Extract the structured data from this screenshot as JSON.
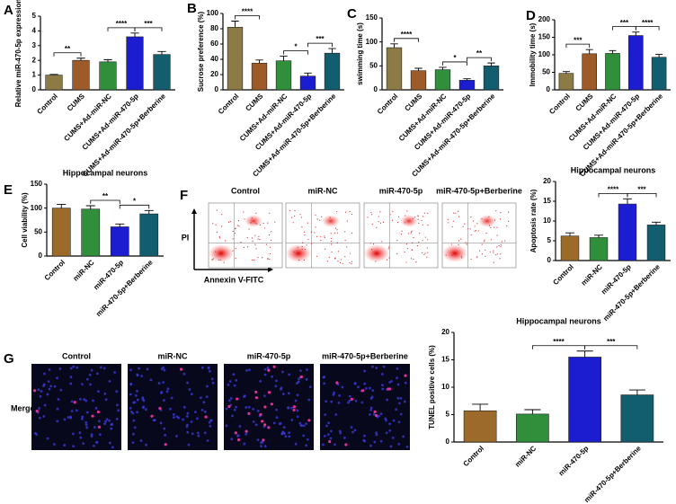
{
  "chart_data": [
    {
      "type": "bar",
      "panel": "A",
      "y_label": "Relative miR-470-5p expression",
      "categories": [
        "Control",
        "CUMS",
        "CUMS+Ad-miR-NC",
        "CUMS+Ad-miR-470-5p",
        "CUMS+Ad-miR-470-5p+Berberine"
      ],
      "values": [
        1.0,
        2.0,
        1.9,
        3.6,
        2.4
      ],
      "errors": [
        0.05,
        0.15,
        0.15,
        0.25,
        0.2
      ],
      "colors": [
        "#8c7b45",
        "#9c5b28",
        "#2f8f3a",
        "#1c1cd0",
        "#125d6e"
      ],
      "ylim": [
        0,
        5
      ],
      "yticks": [
        0,
        1,
        2,
        3,
        4,
        5
      ],
      "annotations": [
        {
          "text": "**",
          "between": [
            "Control",
            "CUMS"
          ]
        },
        {
          "text": "****",
          "between": [
            "CUMS+Ad-miR-NC",
            "CUMS+Ad-miR-470-5p"
          ]
        },
        {
          "text": "***",
          "between": [
            "CUMS+Ad-miR-470-5p",
            "CUMS+Ad-miR-470-5p+Berberine"
          ]
        }
      ]
    },
    {
      "type": "bar",
      "panel": "B",
      "y_label": "Sucrose preference (%)",
      "categories": [
        "Control",
        "CUMS",
        "CUMS+Ad-miR-NC",
        "CUMS+Ad-miR-470-5p",
        "CUMS+Ad-miR-470-5p+Berberine"
      ],
      "values": [
        82,
        35,
        38,
        18,
        48
      ],
      "errors": [
        8,
        4,
        6,
        4,
        6
      ],
      "colors": [
        "#8c7b45",
        "#9c5b28",
        "#2f8f3a",
        "#1c1cd0",
        "#125d6e"
      ],
      "ylim": [
        0,
        100
      ],
      "yticks": [
        0,
        20,
        40,
        60,
        80,
        100
      ],
      "annotations": [
        {
          "text": "****",
          "between": [
            "Control",
            "CUMS"
          ]
        },
        {
          "text": "*",
          "between": [
            "CUMS+Ad-miR-NC",
            "CUMS+Ad-miR-470-5p"
          ]
        },
        {
          "text": "***",
          "between": [
            "CUMS+Ad-miR-470-5p",
            "CUMS+Ad-miR-470-5p+Berberine"
          ]
        }
      ]
    },
    {
      "type": "bar",
      "panel": "C",
      "y_label": "swimming time (s)",
      "categories": [
        "Control",
        "CUMS",
        "CUMS+Ad-miR-NC",
        "CUMS+Ad-miR-470-5p",
        "CUMS+Ad-miR-470-5p+Berberine"
      ],
      "values": [
        88,
        40,
        42,
        20,
        50
      ],
      "errors": [
        8,
        5,
        5,
        3,
        6
      ],
      "colors": [
        "#8c7b45",
        "#9c5b28",
        "#2f8f3a",
        "#1c1cd0",
        "#125d6e"
      ],
      "ylim": [
        0,
        150
      ],
      "yticks": [
        0,
        50,
        100,
        150
      ],
      "annotations": [
        {
          "text": "****",
          "between": [
            "Control",
            "CUMS"
          ]
        },
        {
          "text": "*",
          "between": [
            "CUMS+Ad-miR-NC",
            "CUMS+Ad-miR-470-5p"
          ]
        },
        {
          "text": "**",
          "between": [
            "CUMS+Ad-miR-470-5p",
            "CUMS+Ad-miR-470-5p+Berberine"
          ]
        }
      ]
    },
    {
      "type": "bar",
      "panel": "D",
      "y_label": "Immobility time (s)",
      "categories": [
        "Control",
        "CUMS",
        "CUMS+Ad-miR-NC",
        "CUMS+Ad-miR-470-5p",
        "CUMS+Ad-miR-470-5p+Berberine"
      ],
      "values": [
        47,
        103,
        104,
        155,
        93
      ],
      "errors": [
        5,
        12,
        8,
        10,
        8
      ],
      "colors": [
        "#8c7b45",
        "#9c5b28",
        "#2f8f3a",
        "#1c1cd0",
        "#125d6e"
      ],
      "ylim": [
        0,
        200
      ],
      "yticks": [
        0,
        50,
        100,
        150,
        200
      ],
      "annotations": [
        {
          "text": "***",
          "between": [
            "Control",
            "CUMS"
          ]
        },
        {
          "text": "***",
          "between": [
            "CUMS+Ad-miR-NC",
            "CUMS+Ad-miR-470-5p"
          ]
        },
        {
          "text": "****",
          "between": [
            "CUMS+Ad-miR-470-5p",
            "CUMS+Ad-miR-470-5p+Berberine"
          ]
        }
      ]
    },
    {
      "type": "bar",
      "panel": "E",
      "title": "Hippocampal neurons",
      "y_label": "Cell viability (%)",
      "categories": [
        "Control",
        "miR-NC",
        "miR-470-5p",
        "miR-470-5p+Berberine"
      ],
      "values": [
        100,
        98,
        61,
        88
      ],
      "errors": [
        8,
        7,
        6,
        7
      ],
      "colors": [
        "#9c6b2a",
        "#2f8f3a",
        "#1c1cd0",
        "#125d6e"
      ],
      "ylim": [
        0,
        150
      ],
      "yticks": [
        0,
        50,
        100,
        150
      ],
      "annotations": [
        {
          "text": "**",
          "between": [
            "miR-NC",
            "miR-470-5p"
          ]
        },
        {
          "text": "*",
          "between": [
            "miR-470-5p",
            "miR-470-5p+Berberine"
          ]
        }
      ]
    },
    {
      "type": "bar",
      "panel": "F",
      "title": "Hippocampal neurons",
      "y_label": "Apoptosis rate (%)",
      "categories": [
        "Control",
        "miR-NC",
        "miR-470-5p",
        "miR-470-5p+Berberine"
      ],
      "values": [
        6.2,
        5.8,
        14.3,
        9.0
      ],
      "errors": [
        0.8,
        0.6,
        1.3,
        0.7
      ],
      "colors": [
        "#9c6b2a",
        "#2f8f3a",
        "#1c1cd0",
        "#125d6e"
      ],
      "ylim": [
        0,
        20
      ],
      "yticks": [
        0,
        5,
        10,
        15,
        20
      ],
      "annotations": [
        {
          "text": "****",
          "between": [
            "miR-NC",
            "miR-470-5p"
          ]
        },
        {
          "text": "***",
          "between": [
            "miR-470-5p",
            "miR-470-5p+Berberine"
          ]
        }
      ]
    },
    {
      "type": "bar",
      "panel": "G",
      "title": "Hippocampal neurons",
      "y_label": "TUNEL positive cells (%)",
      "categories": [
        "Control",
        "miR-NC",
        "miR-470-5p",
        "miR-470-5p+Berberine"
      ],
      "values": [
        5.7,
        5.1,
        15.5,
        8.6
      ],
      "errors": [
        1.2,
        0.8,
        1.1,
        0.9
      ],
      "colors": [
        "#9c6b2a",
        "#2f8f3a",
        "#1c1cd0",
        "#125d6e"
      ],
      "ylim": [
        0,
        20
      ],
      "yticks": [
        0,
        5,
        10,
        15,
        20
      ],
      "annotations": [
        {
          "text": "****",
          "between": [
            "miR-NC",
            "miR-470-5p"
          ]
        },
        {
          "text": "***",
          "between": [
            "miR-470-5p",
            "miR-470-5p+Berberine"
          ]
        }
      ]
    }
  ],
  "flow": {
    "samples": [
      "Control",
      "miR-NC",
      "miR-470-5p",
      "miR-470-5p+Berberine"
    ],
    "x_label": "Annexin V-FITC",
    "y_label": "PI"
  },
  "tunel": {
    "samples": [
      "Control",
      "miR-NC",
      "miR-470-5p",
      "miR-470-5p+Berberine"
    ],
    "row_label": "Merge"
  }
}
